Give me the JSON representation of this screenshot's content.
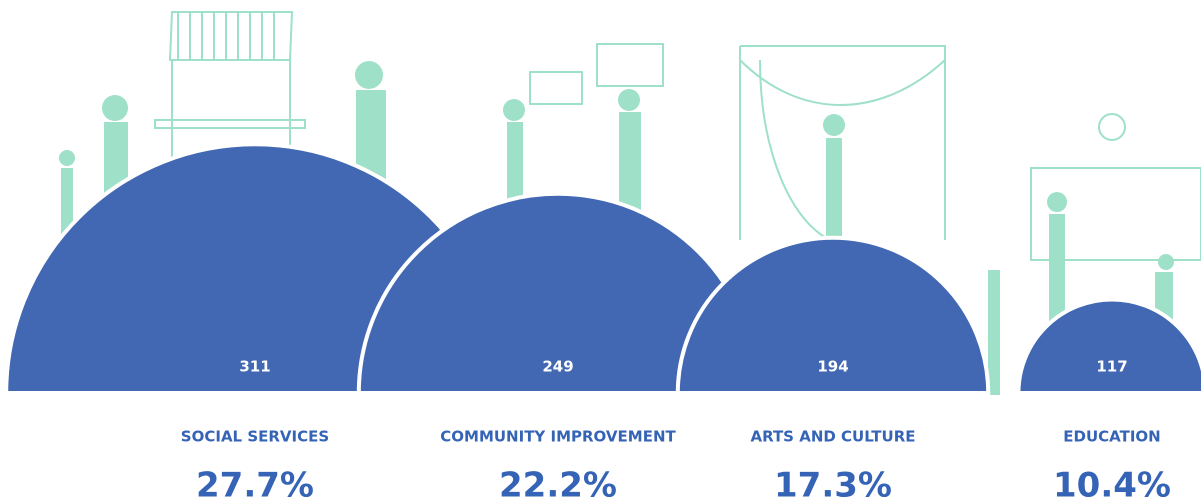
{
  "chart_data": {
    "type": "semicircle",
    "categories": [
      "SOCIAL SERVICES",
      "COMMUNITY IMPROVEMENT",
      "ARTS AND CULTURE",
      "EDUCATION"
    ],
    "values": [
      311,
      249,
      194,
      117
    ],
    "percent_values": [
      27.7,
      22.2,
      17.3,
      10.4
    ],
    "percent_labels": [
      "27.7%",
      "22.2%",
      "17.3%",
      "10.4%"
    ],
    "color": "#4268b3"
  }
}
